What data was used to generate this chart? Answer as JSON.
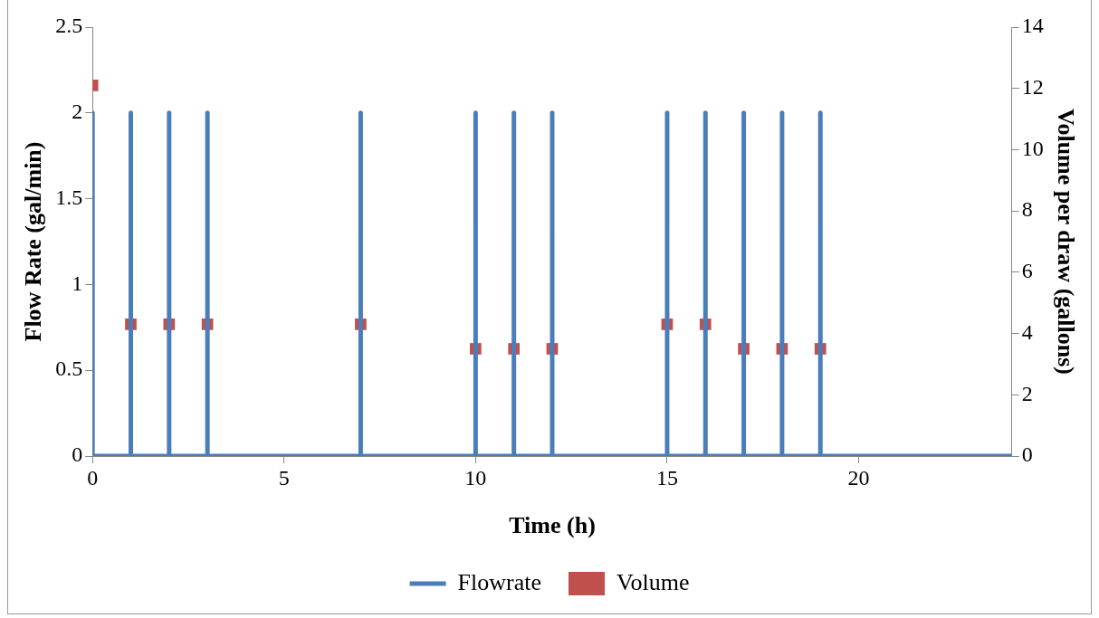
{
  "chart_data": {
    "type": "line",
    "xlabel": "Time (h)",
    "ylabel": "Flow Rate (gal/min)",
    "y2label": "Volume per draw (gallons)",
    "xlim": [
      0,
      24
    ],
    "xticks": [
      0,
      5,
      10,
      15,
      20
    ],
    "ylim": [
      0,
      2.5
    ],
    "yticks": [
      0,
      0.5,
      1,
      1.5,
      2,
      2.5
    ],
    "y2lim": [
      0,
      14
    ],
    "y2ticks": [
      0,
      2,
      4,
      6,
      8,
      10,
      12,
      14
    ],
    "legend": "bottom",
    "grid": false,
    "series": [
      {
        "name": "Flowrate",
        "type": "line",
        "color": "#4a7ebb",
        "marker": "none",
        "line_style": "solid",
        "x": [
          0,
          0,
          1,
          1,
          1,
          2,
          2,
          2,
          3,
          3,
          3,
          7,
          7,
          7,
          10,
          10,
          10,
          11,
          11,
          11,
          12,
          12,
          12,
          15,
          15,
          15,
          16,
          16,
          16,
          17,
          17,
          17,
          18,
          18,
          18,
          19,
          19,
          19,
          24
        ],
        "values": [
          2,
          0,
          0,
          2,
          0,
          0,
          2,
          0,
          0,
          2,
          0,
          0,
          2,
          0,
          0,
          2,
          0,
          0,
          2,
          0,
          0,
          2,
          0,
          0,
          2,
          0,
          0,
          2,
          0,
          0,
          2,
          0,
          0,
          2,
          0,
          0,
          2,
          0,
          0
        ]
      },
      {
        "name": "Volume",
        "type": "scatter",
        "color": "#c0504d",
        "marker": "square",
        "axis": "y2",
        "x": [
          0,
          1,
          2,
          3,
          7,
          10,
          11,
          12,
          15,
          16,
          17,
          18,
          19
        ],
        "values": [
          12.1,
          4.3,
          4.3,
          4.3,
          4.3,
          3.5,
          3.5,
          3.5,
          4.3,
          4.3,
          3.5,
          3.5,
          3.5
        ]
      }
    ]
  }
}
